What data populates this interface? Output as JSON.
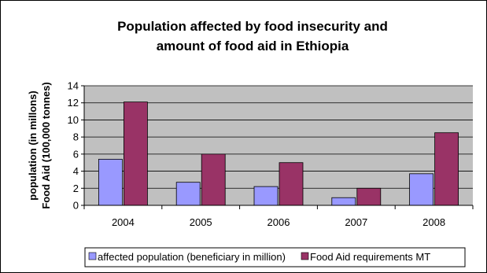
{
  "chart_data": {
    "type": "bar",
    "title_lines": [
      "Population affected by food insecurity and",
      "amount of food aid in Ethiopia"
    ],
    "ylabel_lines": [
      "population (in millons)",
      "Food Aid (100,000 tonnes)"
    ],
    "xlabel": "",
    "categories": [
      "2004",
      "2005",
      "2006",
      "2007",
      "2008"
    ],
    "ylim": [
      0,
      14
    ],
    "yticks": [
      0,
      2,
      4,
      6,
      8,
      10,
      12,
      14
    ],
    "grid": true,
    "legend_position": "bottom",
    "series": [
      {
        "name": "affected population (beneficiary in million)",
        "values": [
          5.4,
          2.7,
          2.2,
          0.9,
          3.7
        ],
        "color": "#9999ff"
      },
      {
        "name": "Food Aid requirements MT",
        "values": [
          12.1,
          6.0,
          5.0,
          2.0,
          8.5
        ],
        "color": "#993366"
      }
    ],
    "plot_background": "#c0c0c0"
  }
}
